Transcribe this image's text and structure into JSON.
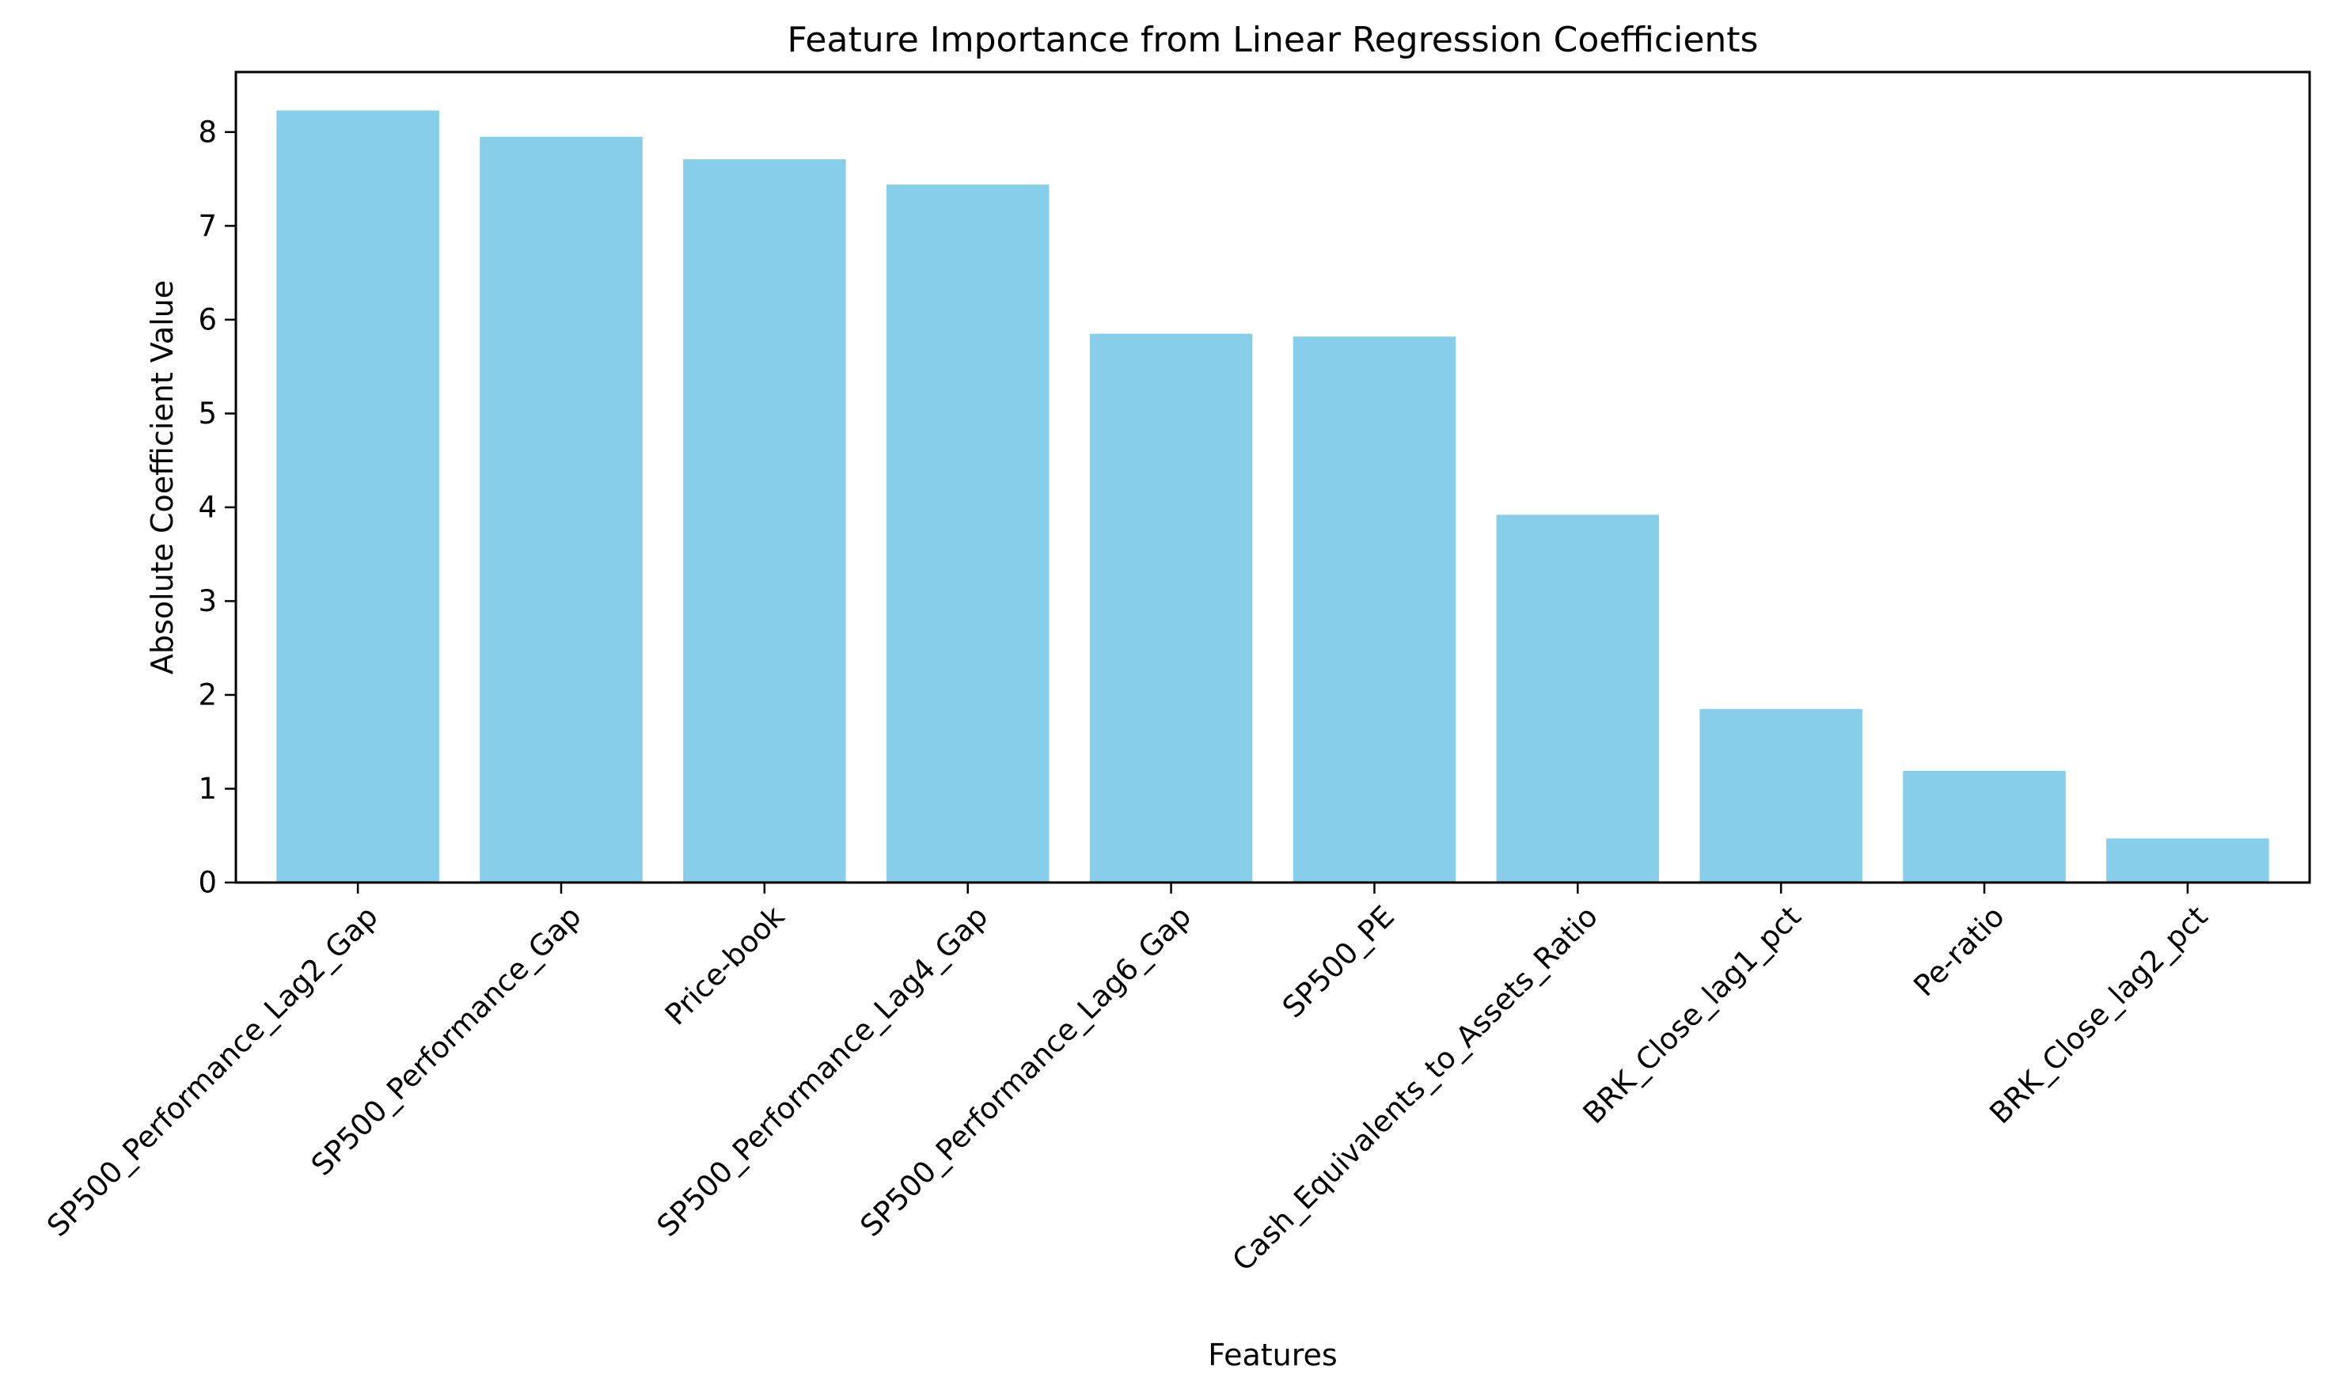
{
  "chart_data": {
    "type": "bar",
    "title": "Feature Importance from Linear Regression Coefficients",
    "xlabel": "Features",
    "ylabel": "Absolute Coefficient Value",
    "categories": [
      "SP500_Performance_Lag2_Gap",
      "SP500_Performance_Gap",
      "Price-book",
      "SP500_Performance_Lag4_Gap",
      "SP500_Performance_Lag6_Gap",
      "SP500_PE",
      "Cash_Equivalents_to_Assets_Ratio",
      "BRK_Close_lag1_pct",
      "Pe-ratio",
      "BRK_Close_lag2_pct"
    ],
    "values": [
      8.23,
      7.95,
      7.71,
      7.44,
      5.85,
      5.82,
      3.92,
      1.85,
      1.19,
      0.47
    ],
    "yticks": [
      "0",
      "1",
      "2",
      "3",
      "4",
      "5",
      "6",
      "7",
      "8"
    ],
    "ylim": [
      0,
      8.64
    ],
    "bar_color": "#87ceeb",
    "grid": false,
    "legend": false
  }
}
